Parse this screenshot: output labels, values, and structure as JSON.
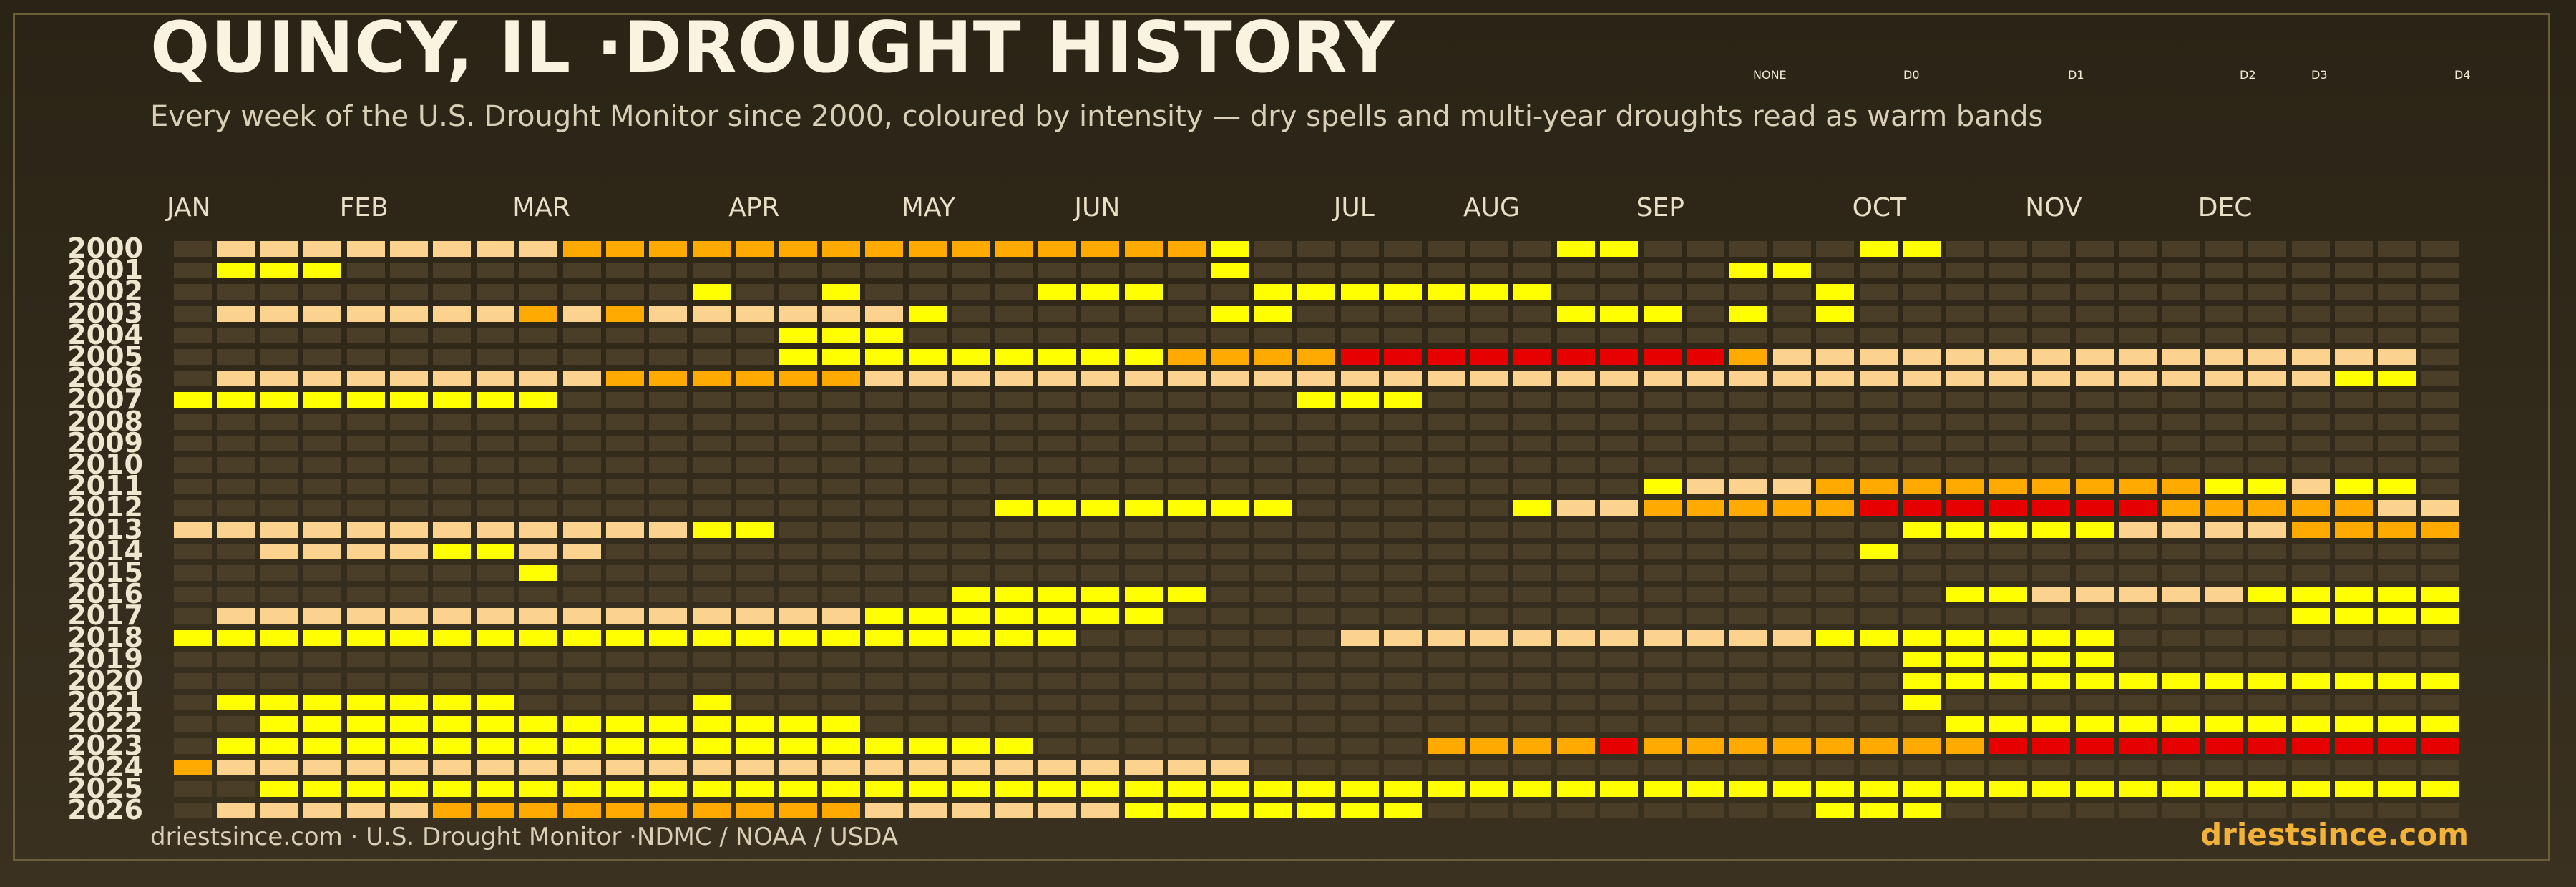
{
  "title": "QUINCY, IL ·DROUGHT HISTORY",
  "subtitle": "Every week of the U.S. Drought Monitor since 2000, coloured by intensity — dry spells and multi-year droughts read as warm bands",
  "footer": {
    "source": "driestsince.com  · U.S. Drought Monitor ·NDMC / NOAA / USDA",
    "brand": "driestsince.com"
  },
  "legend": [
    {
      "label": "NONE",
      "color": "#4a3e28"
    },
    {
      "label": "D0",
      "color": "#ffff00"
    },
    {
      "label": "D1",
      "color": "#fcd38e"
    },
    {
      "label": "D2",
      "color": "#ffaa00"
    },
    {
      "label": "D3",
      "color": "#e60000"
    },
    {
      "label": "D4",
      "color": "#730000"
    }
  ],
  "chart_data": {
    "type": "heatmap",
    "title": "QUINCY, IL ·DROUGHT HISTORY",
    "x_unit": "week of year (1–53)",
    "months": [
      "JAN",
      "FEB",
      "MAR",
      "APR",
      "MAY",
      "JUN",
      "JUL",
      "AUG",
      "SEP",
      "OCT",
      "NOV",
      "DEC"
    ],
    "month_start_weeks": [
      1,
      5,
      9,
      14,
      18,
      22,
      28,
      31,
      35,
      40,
      44,
      48
    ],
    "years": [
      "2000",
      "2001",
      "2002",
      "2003",
      "2004",
      "2005",
      "2006",
      "2007",
      "2008",
      "2009",
      "2010",
      "2011",
      "2012",
      "2013",
      "2014",
      "2015",
      "2016",
      "2017",
      "2018",
      "2019",
      "2020",
      "2021",
      "2022",
      "2023",
      "2024",
      "2025",
      "2026"
    ],
    "levels": [
      "NONE",
      "D0",
      "D1",
      "D2",
      "D3",
      "D4"
    ],
    "level_codes": "'.'=NONE, '0'=D0, '1'=D1, '2'=D2, '3'=D3, '4'=D4; one character per week",
    "rows": [
      ".111111112222222222222220.......00.....00",
      ".000....................0...........00...",
      "............0..0....000..0000000......0..",
      ".11111112121111110......00......000.0.0..",
      "..............000.........................",
      "..............00000000022223333333332111111111111111",
      ".111111111222222111111111111111111111111111111111100",
      "000000000.................000.......................",
      "....................................................",
      "....................................................",
      "....................................................",
      "..................................011122222222200100",
      "...................0000000.....011222223333333222221111111111111111",
      "11111111111100..........................00000111122221111111111111",
      "..11110011.............................0....................",
      "........0..............................",
      "..................000000.................0011111000000000000000",
      ".1111111111111110000000..........................0000000000000000",
      "000000000000000000000......111111111110000000....................",
      "........................................00000.............",
      "........................................0000000000000000000000000",
      ".0000000....0...........................0...................",
      "..00000000000000.........................0000000000000000000000",
      ".0000000000000000000.........2222322222222333333333333333333333",
      "2111111111111111111111111........................................",
      "..000000000000000000000000000000000000000000000000000000000000",
      ".1111122222222221111110000000.........000......................"
    ]
  }
}
